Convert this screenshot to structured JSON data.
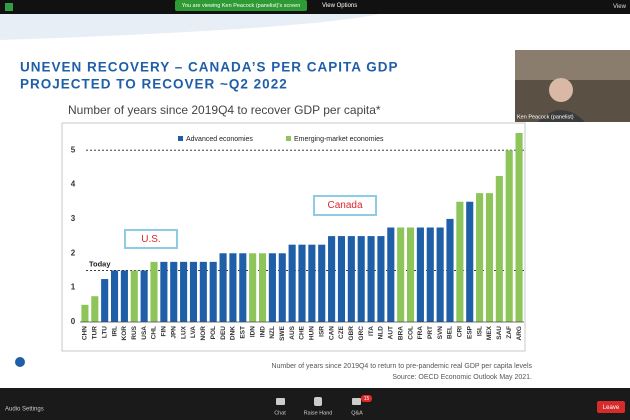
{
  "zoom": {
    "banner": "You are viewing Ken Peacock (panelist)'s screen",
    "view_options": "View Options",
    "view": "View",
    "participant_name": "Ken Peacock (panelist)",
    "audio_settings": "Audio Settings",
    "chat": "Chat",
    "raise_hand": "Raise Hand",
    "qa": "Q&A",
    "qa_badge": "15",
    "leave": "Leave"
  },
  "slide_title": [
    "UNEVEN RECOVERY – CANADA’S PER CAPITA GDP",
    "PROJECTED TO RECOVER ~Q2 2022"
  ],
  "chart_data": {
    "type": "bar",
    "title": "Number of years since 2019Q4 to recover GDP per capita*",
    "categories": [
      "CHN",
      "TUR",
      "LTU",
      "IRL",
      "KOR",
      "RUS",
      "USA",
      "CHL",
      "FIN",
      "JPN",
      "LUX",
      "LVA",
      "NOR",
      "POL",
      "DEU",
      "DNK",
      "EST",
      "IDN",
      "IND",
      "NZL",
      "SWE",
      "AUS",
      "CHE",
      "HUN",
      "ISR",
      "CAN",
      "CZE",
      "GBR",
      "GRC",
      "ITA",
      "NLD",
      "AUT",
      "BRA",
      "COL",
      "FRA",
      "PRT",
      "SVN",
      "BEL",
      "CRI",
      "ESP",
      "ISL",
      "MEX",
      "SAU",
      "ZAF",
      "ARG"
    ],
    "series": [
      {
        "name": "Advanced economies",
        "color": "#1f5fa8",
        "values": [
          null,
          null,
          1.25,
          1.5,
          1.5,
          null,
          1.5,
          null,
          1.75,
          1.75,
          1.75,
          1.75,
          1.75,
          1.75,
          2,
          2,
          2,
          null,
          null,
          2,
          2,
          2.25,
          2.25,
          2.25,
          2.25,
          2.5,
          2.5,
          2.5,
          2.5,
          2.5,
          2.5,
          2.75,
          null,
          null,
          2.75,
          2.75,
          2.75,
          3,
          null,
          3.5,
          null,
          null,
          null,
          null,
          null
        ]
      },
      {
        "name": "Emerging-market economies",
        "color": "#8dc55a",
        "values": [
          0.5,
          0.75,
          null,
          null,
          null,
          1.5,
          null,
          1.75,
          null,
          null,
          null,
          null,
          null,
          null,
          null,
          null,
          null,
          2,
          2,
          null,
          null,
          null,
          null,
          null,
          null,
          null,
          null,
          null,
          null,
          null,
          null,
          null,
          2.75,
          2.75,
          null,
          null,
          null,
          null,
          3.5,
          null,
          3.75,
          3.75,
          4.25,
          5,
          5.5
        ]
      }
    ],
    "ylim": [
      0,
      5.5
    ],
    "yticks": [
      0,
      1,
      2,
      3,
      4,
      5
    ],
    "reference_lines": [
      {
        "value": 1.5,
        "label": "Today"
      },
      {
        "value": 5
      }
    ],
    "annotations": [
      "U.S.",
      "Canada"
    ],
    "footnotes": [
      "Number of years since 2019Q4 to return to pre-pandemic real GDP per capita levels",
      "Source: OECD Economic Outlook May 2021."
    ]
  }
}
